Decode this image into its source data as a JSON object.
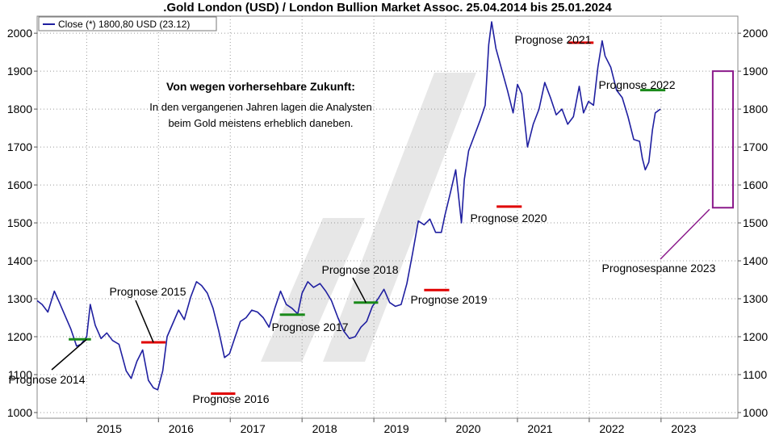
{
  "chart_data": {
    "type": "line",
    "title": ".Gold London (USD) / London Bullion Market Assoc. 25.04.2014 bis 25.01.2024",
    "legend": "Close (*) 1800,80 USD (23.12)",
    "legend_position": "top-left",
    "ylim": [
      985,
      2045
    ],
    "y_ticks": [
      1000,
      1100,
      1200,
      1300,
      1400,
      1500,
      1600,
      1700,
      1800,
      1900,
      2000
    ],
    "y_tick_labels": [
      "1000",
      "1100",
      "1200",
      "1300",
      "1400",
      "1500",
      "1600",
      "1700",
      "1800",
      "1900",
      "2000"
    ],
    "xlim": [
      2014.31,
      2024.07
    ],
    "x_ticks": [
      2015,
      2016,
      2017,
      2018,
      2019,
      2020,
      2021,
      2022,
      2023
    ],
    "x_tick_labels": [
      "2015",
      "2016",
      "2017",
      "2018",
      "2019",
      "2020",
      "2021",
      "2022",
      "2023"
    ],
    "grid": true,
    "series": [
      {
        "name": "Close (*) 1800,80 USD (23.12)",
        "color": "#1f1fa0",
        "points": [
          [
            2014.31,
            1295
          ],
          [
            2014.38,
            1285
          ],
          [
            2014.46,
            1265
          ],
          [
            2014.55,
            1320
          ],
          [
            2014.62,
            1290
          ],
          [
            2014.7,
            1255
          ],
          [
            2014.78,
            1220
          ],
          [
            2014.86,
            1175
          ],
          [
            2014.92,
            1180
          ],
          [
            2015.0,
            1200
          ],
          [
            2015.05,
            1285
          ],
          [
            2015.12,
            1230
          ],
          [
            2015.2,
            1195
          ],
          [
            2015.28,
            1210
          ],
          [
            2015.36,
            1190
          ],
          [
            2015.45,
            1180
          ],
          [
            2015.55,
            1110
          ],
          [
            2015.62,
            1090
          ],
          [
            2015.7,
            1135
          ],
          [
            2015.78,
            1165
          ],
          [
            2015.86,
            1085
          ],
          [
            2015.93,
            1065
          ],
          [
            2015.99,
            1060
          ],
          [
            2016.06,
            1110
          ],
          [
            2016.12,
            1200
          ],
          [
            2016.2,
            1235
          ],
          [
            2016.28,
            1270
          ],
          [
            2016.36,
            1245
          ],
          [
            2016.45,
            1305
          ],
          [
            2016.53,
            1345
          ],
          [
            2016.6,
            1335
          ],
          [
            2016.68,
            1315
          ],
          [
            2016.76,
            1275
          ],
          [
            2016.84,
            1215
          ],
          [
            2016.92,
            1145
          ],
          [
            2016.99,
            1155
          ],
          [
            2017.06,
            1195
          ],
          [
            2017.14,
            1240
          ],
          [
            2017.22,
            1250
          ],
          [
            2017.3,
            1270
          ],
          [
            2017.38,
            1265
          ],
          [
            2017.46,
            1250
          ],
          [
            2017.54,
            1225
          ],
          [
            2017.62,
            1275
          ],
          [
            2017.7,
            1320
          ],
          [
            2017.78,
            1285
          ],
          [
            2017.86,
            1275
          ],
          [
            2017.94,
            1260
          ],
          [
            2018.0,
            1315
          ],
          [
            2018.08,
            1345
          ],
          [
            2018.16,
            1330
          ],
          [
            2018.25,
            1340
          ],
          [
            2018.33,
            1320
          ],
          [
            2018.41,
            1295
          ],
          [
            2018.5,
            1250
          ],
          [
            2018.58,
            1215
          ],
          [
            2018.66,
            1195
          ],
          [
            2018.74,
            1200
          ],
          [
            2018.82,
            1225
          ],
          [
            2018.9,
            1240
          ],
          [
            2018.98,
            1280
          ],
          [
            2019.06,
            1300
          ],
          [
            2019.14,
            1325
          ],
          [
            2019.22,
            1290
          ],
          [
            2019.3,
            1280
          ],
          [
            2019.38,
            1285
          ],
          [
            2019.46,
            1340
          ],
          [
            2019.54,
            1420
          ],
          [
            2019.62,
            1505
          ],
          [
            2019.7,
            1495
          ],
          [
            2019.78,
            1510
          ],
          [
            2019.86,
            1475
          ],
          [
            2019.94,
            1475
          ],
          [
            2019.99,
            1520
          ],
          [
            2020.06,
            1575
          ],
          [
            2020.14,
            1640
          ],
          [
            2020.22,
            1500
          ],
          [
            2020.26,
            1615
          ],
          [
            2020.32,
            1690
          ],
          [
            2020.4,
            1730
          ],
          [
            2020.48,
            1770
          ],
          [
            2020.55,
            1810
          ],
          [
            2020.6,
            1970
          ],
          [
            2020.64,
            2030
          ],
          [
            2020.7,
            1960
          ],
          [
            2020.78,
            1905
          ],
          [
            2020.86,
            1850
          ],
          [
            2020.94,
            1790
          ],
          [
            2021.0,
            1865
          ],
          [
            2021.06,
            1840
          ],
          [
            2021.14,
            1700
          ],
          [
            2021.22,
            1760
          ],
          [
            2021.3,
            1800
          ],
          [
            2021.38,
            1870
          ],
          [
            2021.46,
            1830
          ],
          [
            2021.54,
            1785
          ],
          [
            2021.62,
            1800
          ],
          [
            2021.7,
            1760
          ],
          [
            2021.78,
            1780
          ],
          [
            2021.86,
            1860
          ],
          [
            2021.92,
            1790
          ],
          [
            2021.99,
            1820
          ],
          [
            2022.06,
            1810
          ],
          [
            2022.12,
            1910
          ],
          [
            2022.18,
            1980
          ],
          [
            2022.22,
            1940
          ],
          [
            2022.3,
            1910
          ],
          [
            2022.38,
            1850
          ],
          [
            2022.46,
            1830
          ],
          [
            2022.54,
            1780
          ],
          [
            2022.62,
            1720
          ],
          [
            2022.7,
            1715
          ],
          [
            2022.74,
            1670
          ],
          [
            2022.78,
            1640
          ],
          [
            2022.83,
            1660
          ],
          [
            2022.88,
            1745
          ],
          [
            2022.92,
            1790
          ],
          [
            2022.99,
            1800
          ]
        ]
      }
    ],
    "forecasts": [
      {
        "label": "Prognose 2014",
        "year": 2014,
        "x_from": 2014.75,
        "x_to": 2015.06,
        "value": 1193,
        "color": "green",
        "hit": true
      },
      {
        "label": "Prognose 2015",
        "year": 2015,
        "x_from": 2015.76,
        "x_to": 2016.1,
        "value": 1185,
        "color": "red",
        "hit": false
      },
      {
        "label": "Prognose 2016",
        "year": 2016,
        "x_from": 2016.73,
        "x_to": 2017.07,
        "value": 1050,
        "color": "red",
        "hit": false
      },
      {
        "label": "Prognose 2017",
        "year": 2017,
        "x_from": 2017.69,
        "x_to": 2018.04,
        "value": 1258,
        "color": "green",
        "hit": true
      },
      {
        "label": "Prognose 2018",
        "year": 2018,
        "x_from": 2018.72,
        "x_to": 2019.06,
        "value": 1290,
        "color": "green",
        "hit": true
      },
      {
        "label": "Prognose 2019",
        "year": 2019,
        "x_from": 2019.7,
        "x_to": 2020.05,
        "value": 1323,
        "color": "red",
        "hit": false
      },
      {
        "label": "Prognose 2020",
        "year": 2020,
        "x_from": 2020.71,
        "x_to": 2021.06,
        "value": 1543,
        "color": "red",
        "hit": false
      },
      {
        "label": "Prognose 2021",
        "year": 2021,
        "x_from": 2021.71,
        "x_to": 2022.06,
        "value": 1975,
        "color": "red",
        "hit": false
      },
      {
        "label": "Prognose 2022",
        "year": 2022,
        "x_from": 2022.71,
        "x_to": 2023.06,
        "value": 1850,
        "color": "green",
        "hit": true
      }
    ],
    "forecast_range": {
      "label": "Prognosespanne 2023",
      "year": 2023,
      "x_from": 2023.72,
      "x_to": 2024.2,
      "low": 1540,
      "high": 1900,
      "color": "purple"
    },
    "annotation": {
      "heading": "Von wegen vorhersehbare Zukunft:",
      "lines": [
        "In den vergangenen Jahren lagen die Analysten",
        "beim Gold meistens erheblich daneben."
      ]
    }
  }
}
